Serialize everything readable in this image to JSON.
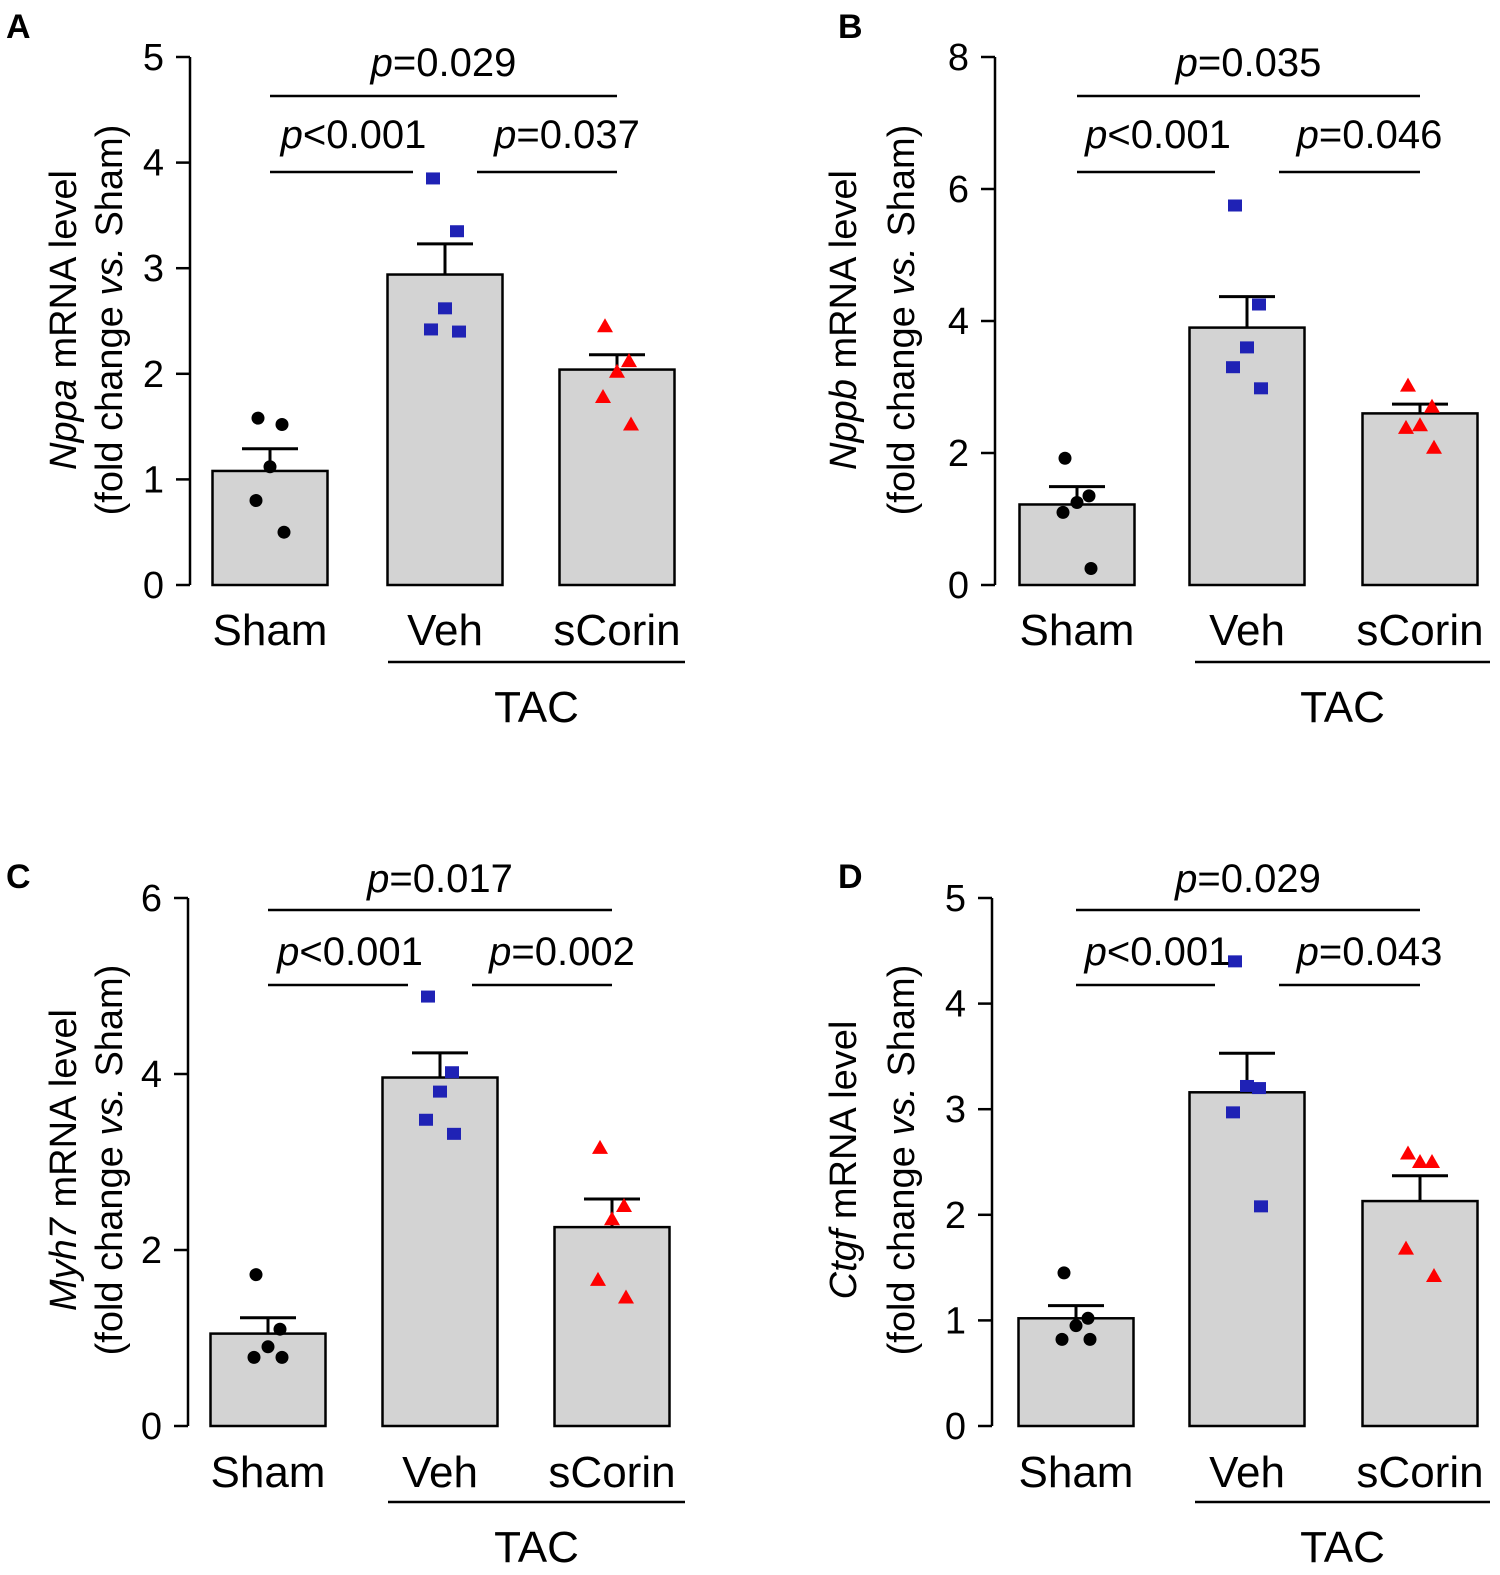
{
  "chart_data": [
    {
      "type": "bar",
      "panel": "A",
      "gene": "Nppa",
      "ylabel_suffix": " mRNA level",
      "ylabel_line2_pre": "(fold change ",
      "ylabel_line2_italic": "vs.",
      "ylabel_line2_post": " Sham)",
      "ylim": [
        0,
        5
      ],
      "yticks": [
        0,
        1,
        2,
        3,
        4,
        5
      ],
      "categories": [
        "Sham",
        "Veh",
        "sCorin"
      ],
      "group_label": "TAC",
      "means": [
        1.08,
        2.94,
        2.04
      ],
      "errors": [
        0.21,
        0.29,
        0.14
      ],
      "points": [
        [
          1.58,
          1.52,
          1.12,
          0.8,
          0.5
        ],
        [
          3.85,
          3.35,
          2.62,
          2.42,
          2.4
        ],
        [
          2.45,
          2.12,
          2.02,
          1.78,
          1.52
        ]
      ],
      "point_colors": [
        "#000000",
        "#1f22b5",
        "#ff0000"
      ],
      "marker_shapes": [
        "circle",
        "square",
        "triangle"
      ],
      "comparisons": [
        {
          "p_label": "p",
          "p_value": "=0.029",
          "from": 0,
          "to": 2
        },
        {
          "p_label": "p",
          "p_value": "<0.001",
          "from": 0,
          "to": 1
        },
        {
          "p_label": "p",
          "p_value": "=0.037",
          "from": 1,
          "to": 2
        }
      ]
    },
    {
      "type": "bar",
      "panel": "B",
      "gene": "Nppb",
      "ylabel_suffix": " mRNA level",
      "ylabel_line2_pre": "(fold change ",
      "ylabel_line2_italic": "vs.",
      "ylabel_line2_post": " Sham)",
      "ylim": [
        0,
        8
      ],
      "yticks": [
        0,
        2,
        4,
        6,
        8
      ],
      "categories": [
        "Sham",
        "Veh",
        "sCorin"
      ],
      "group_label": "TAC",
      "means": [
        1.22,
        3.9,
        2.6
      ],
      "errors": [
        0.27,
        0.47,
        0.14
      ],
      "points": [
        [
          1.92,
          1.35,
          1.25,
          1.1,
          0.25
        ],
        [
          5.75,
          4.25,
          3.6,
          3.3,
          2.98
        ],
        [
          3.02,
          2.7,
          2.42,
          2.38,
          2.08
        ]
      ],
      "point_colors": [
        "#000000",
        "#1f22b5",
        "#ff0000"
      ],
      "marker_shapes": [
        "circle",
        "square",
        "triangle"
      ],
      "comparisons": [
        {
          "p_label": "p",
          "p_value": "=0.035",
          "from": 0,
          "to": 2
        },
        {
          "p_label": "p",
          "p_value": "<0.001",
          "from": 0,
          "to": 1
        },
        {
          "p_label": "p",
          "p_value": "=0.046",
          "from": 1,
          "to": 2
        }
      ]
    },
    {
      "type": "bar",
      "panel": "C",
      "gene": "Myh7",
      "ylabel_suffix": " mRNA level",
      "ylabel_line2_pre": "(fold change ",
      "ylabel_line2_italic": "vs.",
      "ylabel_line2_post": " Sham)",
      "ylim": [
        0,
        6
      ],
      "yticks": [
        0,
        2,
        4,
        6
      ],
      "categories": [
        "Sham",
        "Veh",
        "sCorin"
      ],
      "group_label": "TAC",
      "means": [
        1.05,
        3.96,
        2.26
      ],
      "errors": [
        0.18,
        0.28,
        0.32
      ],
      "points": [
        [
          1.72,
          1.1,
          0.9,
          0.78,
          0.78
        ],
        [
          4.88,
          4.02,
          3.8,
          3.48,
          3.32
        ],
        [
          3.16,
          2.5,
          2.35,
          1.66,
          1.46
        ]
      ],
      "point_colors": [
        "#000000",
        "#1f22b5",
        "#ff0000"
      ],
      "marker_shapes": [
        "circle",
        "square",
        "triangle"
      ],
      "comparisons": [
        {
          "p_label": "p",
          "p_value": "=0.017",
          "from": 0,
          "to": 2
        },
        {
          "p_label": "p",
          "p_value": "<0.001",
          "from": 0,
          "to": 1
        },
        {
          "p_label": "p",
          "p_value": "=0.002",
          "from": 1,
          "to": 2
        }
      ]
    },
    {
      "type": "bar",
      "panel": "D",
      "gene": "Ctgf",
      "ylabel_suffix": " mRNA level",
      "ylabel_line2_pre": "(fold change ",
      "ylabel_line2_italic": "vs.",
      "ylabel_line2_post": " Sham)",
      "ylim": [
        0,
        5
      ],
      "yticks": [
        0,
        1,
        2,
        3,
        4,
        5
      ],
      "categories": [
        "Sham",
        "Veh",
        "sCorin"
      ],
      "group_label": "TAC",
      "means": [
        1.02,
        3.16,
        2.13
      ],
      "errors": [
        0.12,
        0.37,
        0.24
      ],
      "points": [
        [
          1.45,
          1.02,
          0.95,
          0.82,
          0.82
        ],
        [
          4.4,
          3.2,
          3.22,
          2.97,
          2.08
        ],
        [
          2.58,
          2.5,
          2.5,
          1.68,
          1.42
        ]
      ],
      "point_colors": [
        "#000000",
        "#1f22b5",
        "#ff0000"
      ],
      "marker_shapes": [
        "circle",
        "square",
        "triangle"
      ],
      "comparisons": [
        {
          "p_label": "p",
          "p_value": "=0.029",
          "from": 0,
          "to": 2
        },
        {
          "p_label": "p",
          "p_value": "<0.001",
          "from": 0,
          "to": 1
        },
        {
          "p_label": "p",
          "p_value": "=0.043",
          "from": 1,
          "to": 2
        }
      ]
    }
  ],
  "style": {
    "bar_fill": "#d3d3d3",
    "bar_stroke": "#000000"
  }
}
